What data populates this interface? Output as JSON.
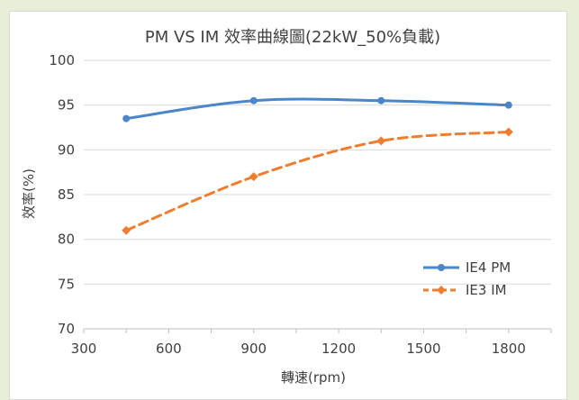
{
  "chart_data": {
    "type": "line",
    "title": "PM VS IM 效率曲線圖(22kW_50%負載)",
    "xlabel": "轉速(rpm)",
    "ylabel": "效率(%)",
    "xlim": [
      300,
      1950
    ],
    "ylim": [
      70,
      100
    ],
    "xticks": [
      300,
      600,
      900,
      1200,
      1500,
      1800
    ],
    "yticks": [
      70,
      75,
      80,
      85,
      90,
      95,
      100
    ],
    "grid": "horizontal",
    "legend": "right",
    "series": [
      {
        "name": "IE4 PM",
        "color": "#4a86c8",
        "style": "solid",
        "marker": "circle",
        "x": [
          450,
          900,
          1350,
          1800
        ],
        "values": [
          93.5,
          95.5,
          95.5,
          95
        ]
      },
      {
        "name": "IE3 IM",
        "color": "#ed7d31",
        "style": "dashed",
        "marker": "diamond",
        "x": [
          450,
          900,
          1350,
          1800
        ],
        "values": [
          81,
          87,
          91,
          92
        ]
      }
    ]
  }
}
